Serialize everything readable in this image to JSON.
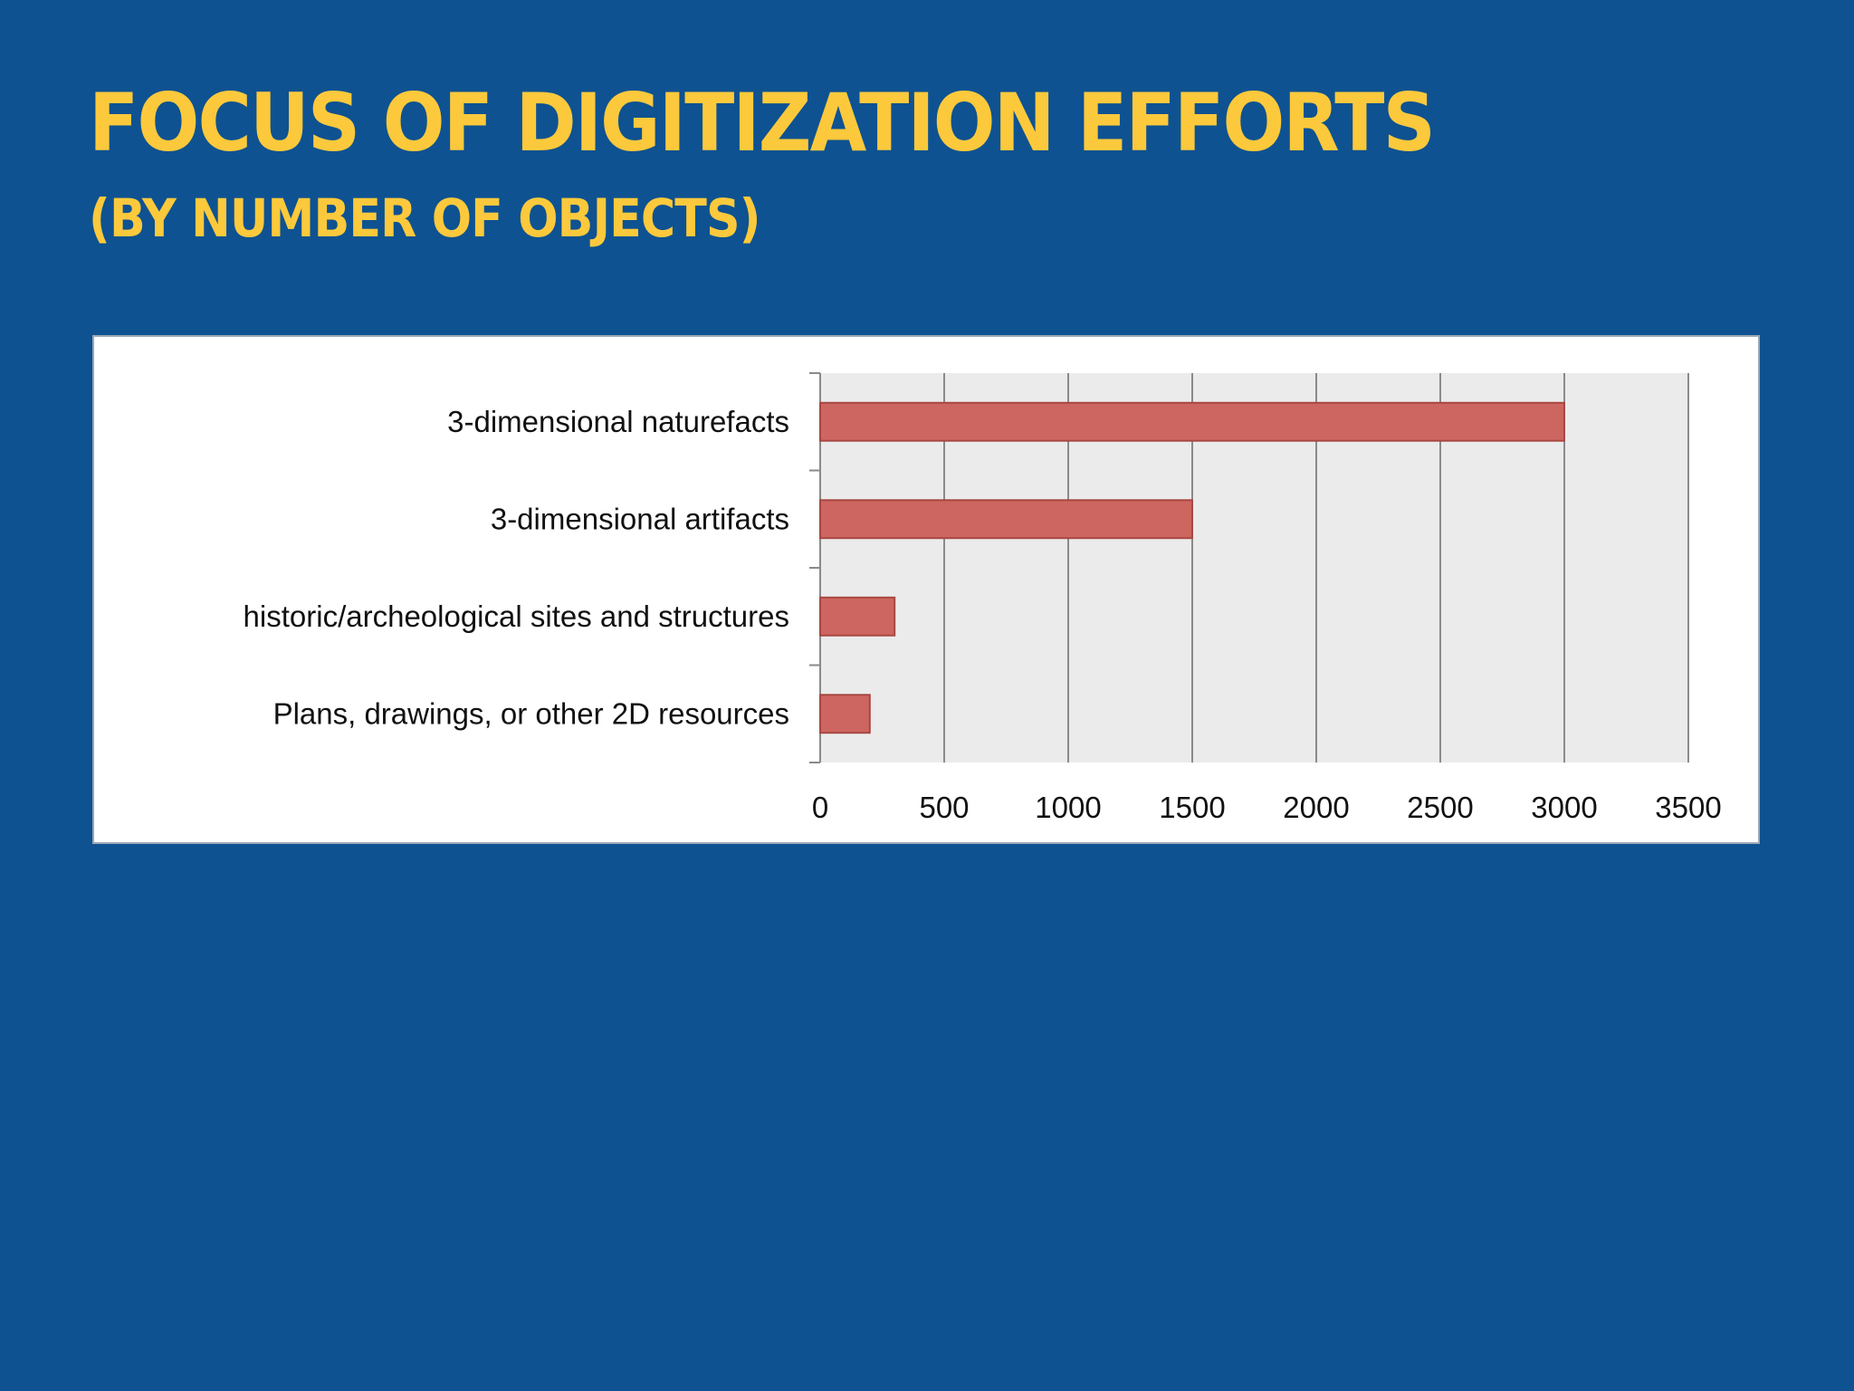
{
  "slide": {
    "title": "Focus of Digitization Efforts",
    "subtitle": "(by number of objects)"
  },
  "colors": {
    "background": "#0e5291",
    "title": "#fcc93c",
    "bar_fill": "#cd6660",
    "bar_stroke": "#a84742",
    "plot_bg": "#ebebeb",
    "gridline": "#8a8a8a"
  },
  "chart_data": {
    "type": "bar",
    "orientation": "horizontal",
    "categories": [
      "3-dimensional naturefacts",
      "3-dimensional artifacts",
      "historic/archeological sites and structures",
      "Plans, drawings, or other 2D resources"
    ],
    "values": [
      3000,
      1500,
      300,
      200
    ],
    "xlim": [
      0,
      3500
    ],
    "xticks": [
      "0",
      "500",
      "1000",
      "1500",
      "2000",
      "2500",
      "3000",
      "3500"
    ],
    "grid": true,
    "legend": "none"
  }
}
